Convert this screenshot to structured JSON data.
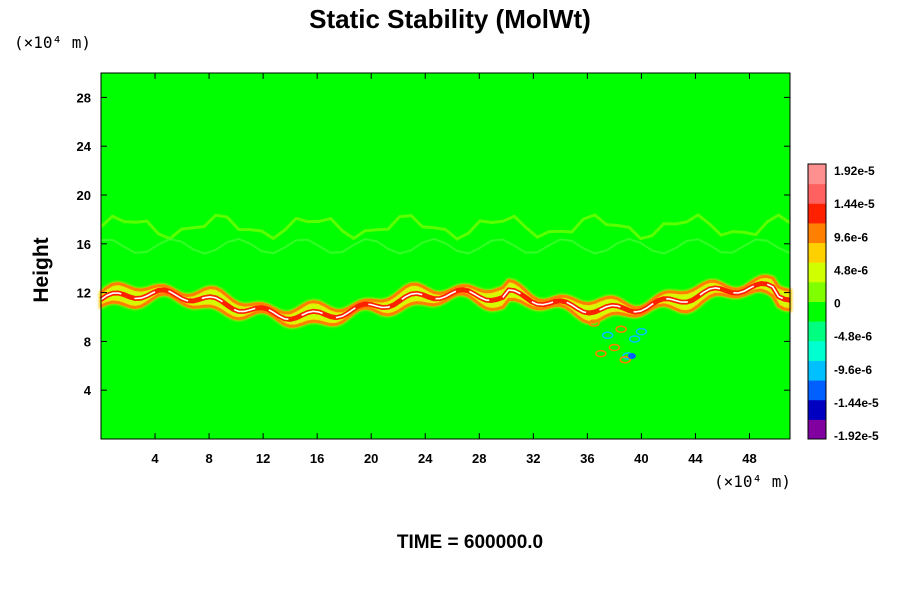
{
  "chart_data": {
    "type": "heatmap",
    "title": "Static Stability (MolWt)",
    "ylabel": "Height",
    "xlabel": "",
    "x_unit_label": "(×10⁴ m)",
    "y_unit_label": "(×10⁴ m)",
    "xlim": [
      0,
      51
    ],
    "ylim": [
      0,
      30
    ],
    "x_ticks": [
      "4",
      "8",
      "12",
      "16",
      "20",
      "24",
      "28",
      "32",
      "36",
      "40",
      "44",
      "48"
    ],
    "x_tick_values": [
      4,
      8,
      12,
      16,
      20,
      24,
      28,
      32,
      36,
      40,
      44,
      48
    ],
    "y_ticks": [
      "4",
      "8",
      "12",
      "16",
      "20",
      "24",
      "28"
    ],
    "y_tick_values": [
      4,
      8,
      12,
      16,
      20,
      24,
      28
    ],
    "colorbar": {
      "labels": [
        "1.92e-5",
        "1.44e-5",
        "9.6e-6",
        "4.8e-6",
        "0",
        "-4.8e-6",
        "-9.6e-6",
        "-1.44e-5",
        "-1.92e-5"
      ],
      "range": [
        -1.92e-05,
        1.92e-05
      ],
      "colors": [
        "#8000a0",
        "#0000c0",
        "#0060ff",
        "#00c0ff",
        "#00ffd0",
        "#00ff80",
        "#00ff00",
        "#80ff00",
        "#d0ff00",
        "#ffd000",
        "#ff8000",
        "#ff2000",
        "#ff6060",
        "#ff9090"
      ]
    },
    "background_value": "0",
    "features": [
      {
        "name": "tropopause band",
        "height_range": [
          10,
          12
        ],
        "max_value": "1.92e-5"
      },
      {
        "name": "upper ripple band",
        "height_range": [
          15,
          18
        ]
      },
      {
        "name": "negative patch",
        "x_range": [
          35,
          41
        ],
        "height_range": [
          6,
          10
        ],
        "min_value": "-1.44e-5"
      }
    ],
    "footer": "TIME = 600000.0"
  }
}
